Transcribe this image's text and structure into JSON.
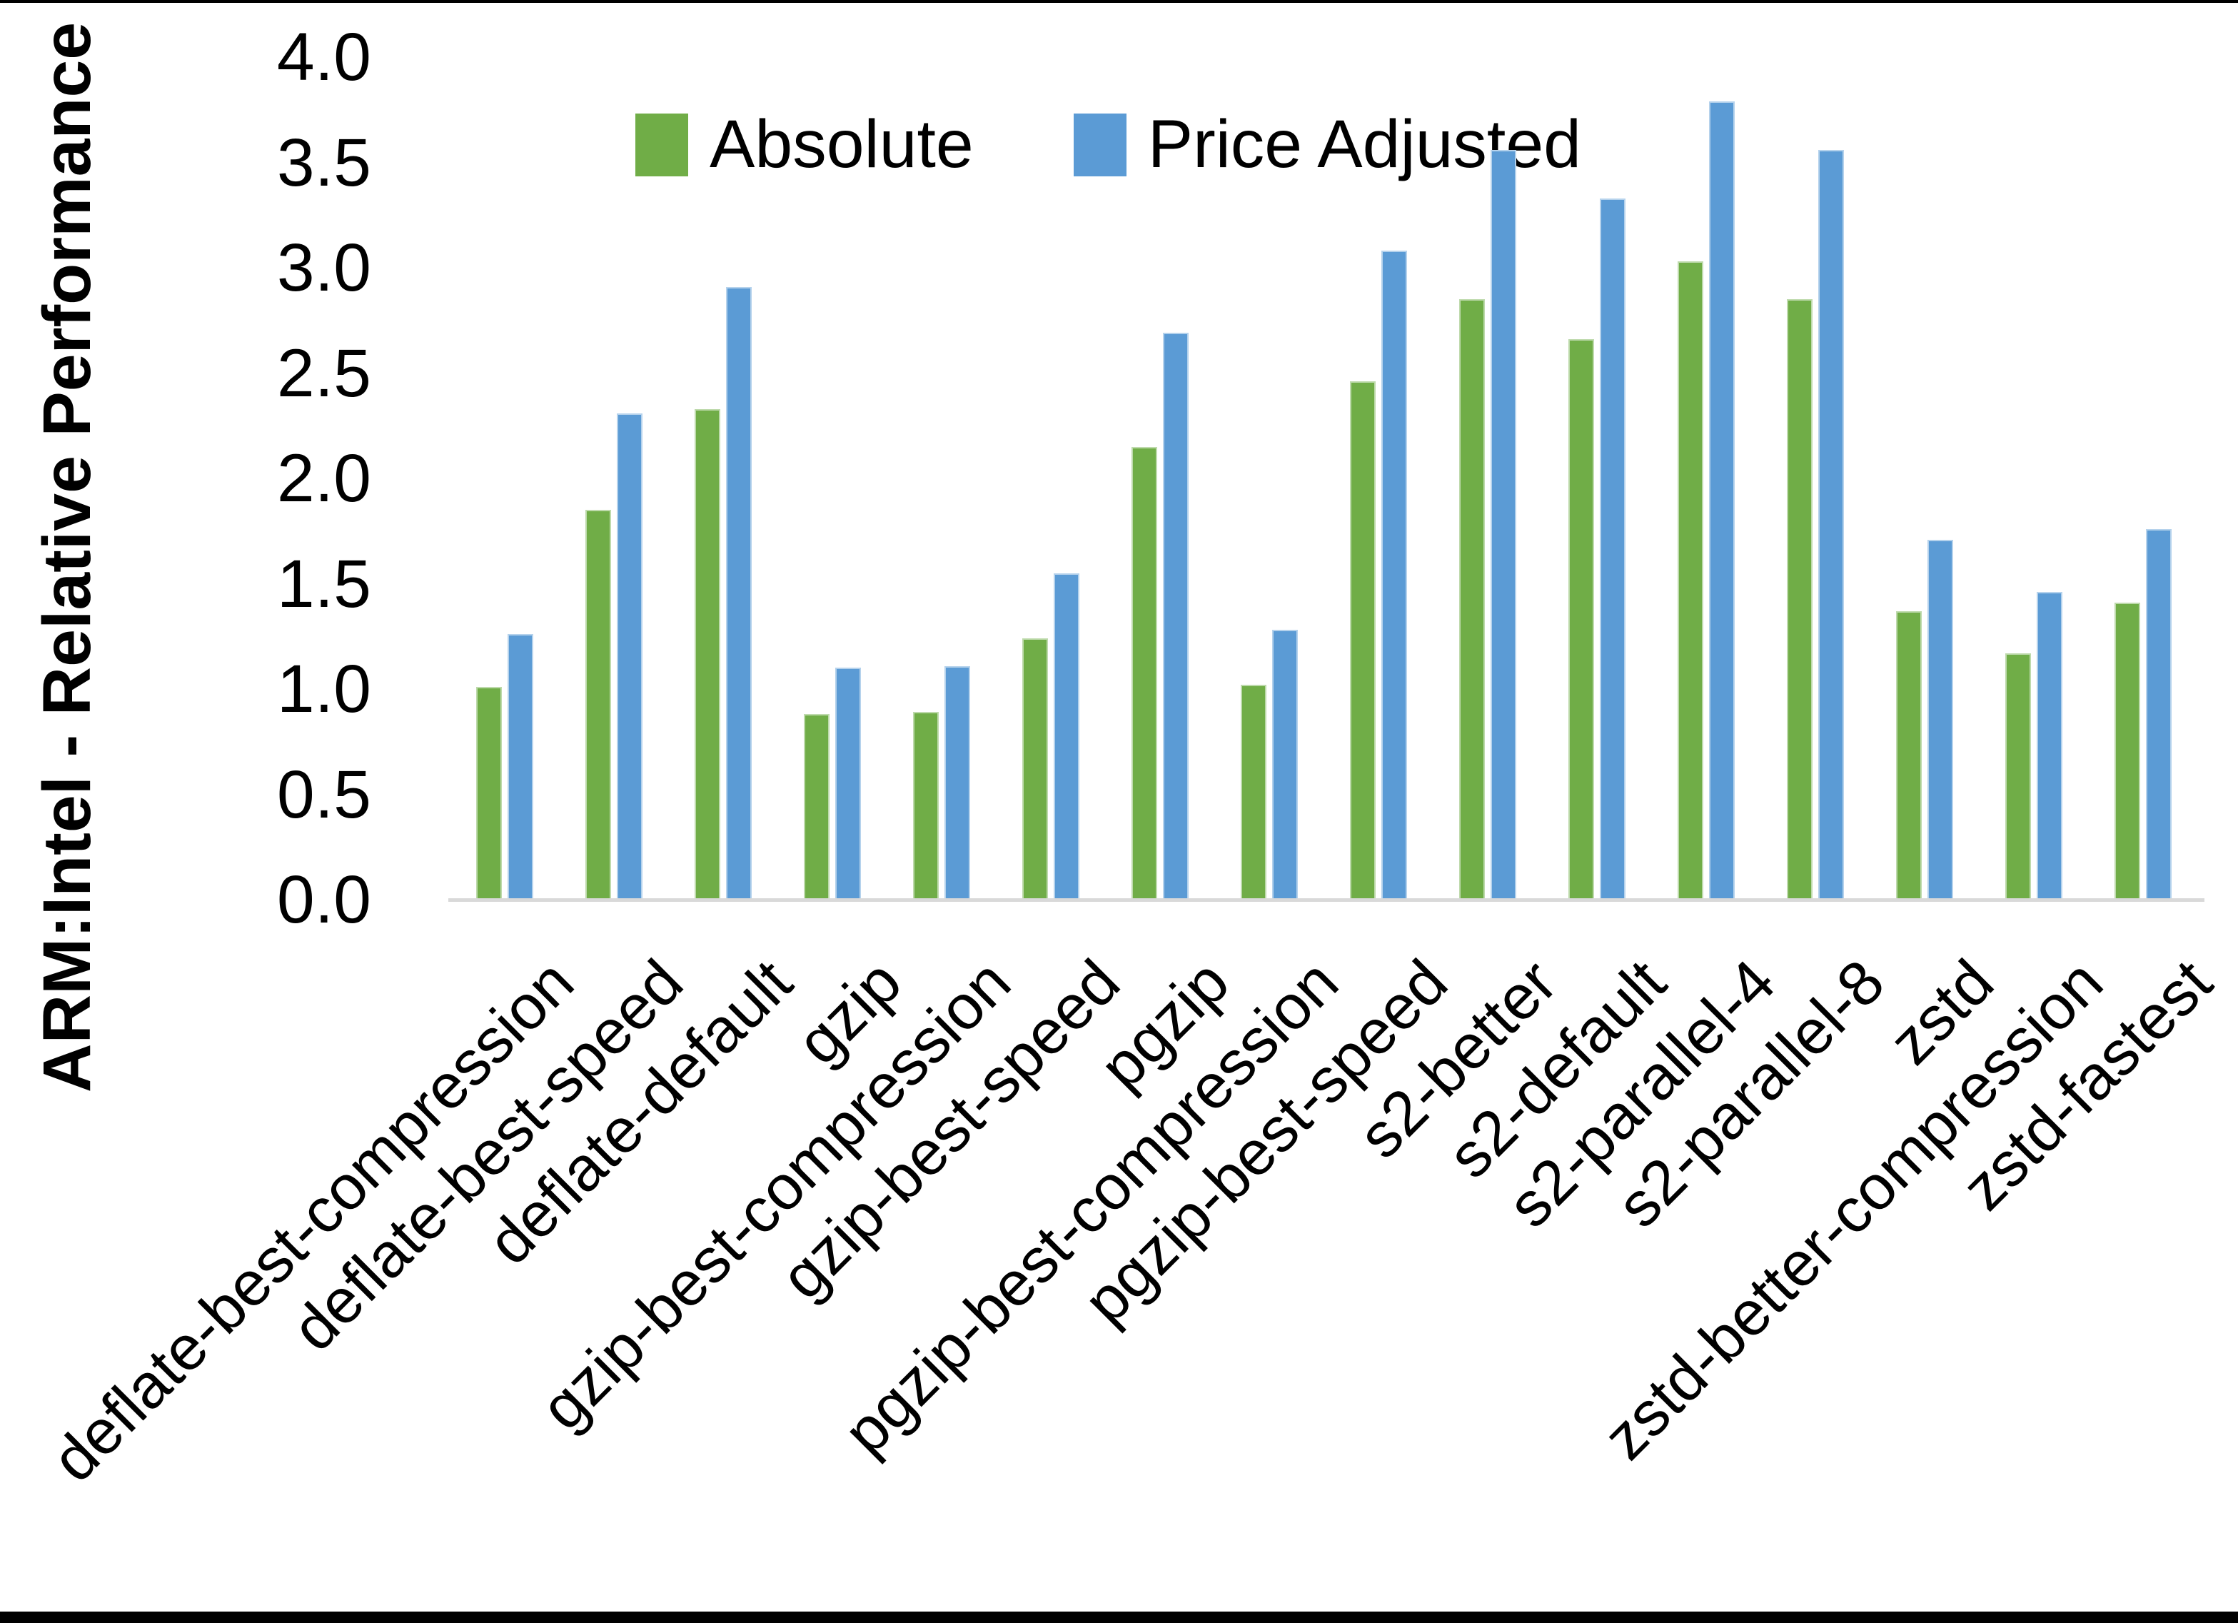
{
  "chart_data": {
    "type": "bar",
    "title": "",
    "ylabel": "ARM:Intel - Relative Performance",
    "xlabel": "",
    "ylim": [
      0.0,
      4.0
    ],
    "ytick_step": 0.5,
    "ytick_labels": [
      "0.0",
      "0.5",
      "1.0",
      "1.5",
      "2.0",
      "2.5",
      "3.0",
      "3.5",
      "4.0"
    ],
    "grid": false,
    "legend_position": "top-center",
    "categories": [
      "deflate-best-compression",
      "deflate-best-speed",
      "deflate-default",
      "gzip",
      "gzip-best-compression",
      "gzip-best-speed",
      "pgzip",
      "pgzip-best-compression",
      "pgzip-best-speed",
      "s2-better",
      "s2-default",
      "s2-parallel-4",
      "s2-parallel-8",
      "zstd",
      "zstd-better-compression",
      "zstd-fastest"
    ],
    "series": [
      {
        "name": "Absolute",
        "color": "#70AD47",
        "values": [
          1.01,
          1.85,
          2.33,
          0.88,
          0.89,
          1.24,
          2.15,
          1.02,
          2.46,
          2.85,
          2.66,
          3.03,
          2.85,
          1.37,
          1.17,
          1.41
        ]
      },
      {
        "name": "Price Adjusted",
        "color": "#5B9BD5",
        "values": [
          1.26,
          2.31,
          2.91,
          1.1,
          1.11,
          1.55,
          2.69,
          1.28,
          3.08,
          3.56,
          3.33,
          3.79,
          3.56,
          1.71,
          1.46,
          1.76
        ]
      }
    ]
  },
  "colors": {
    "background": "#FFFFFF",
    "axis_line": "#D9D9D9",
    "text": "#000000",
    "frame": "#000000"
  }
}
